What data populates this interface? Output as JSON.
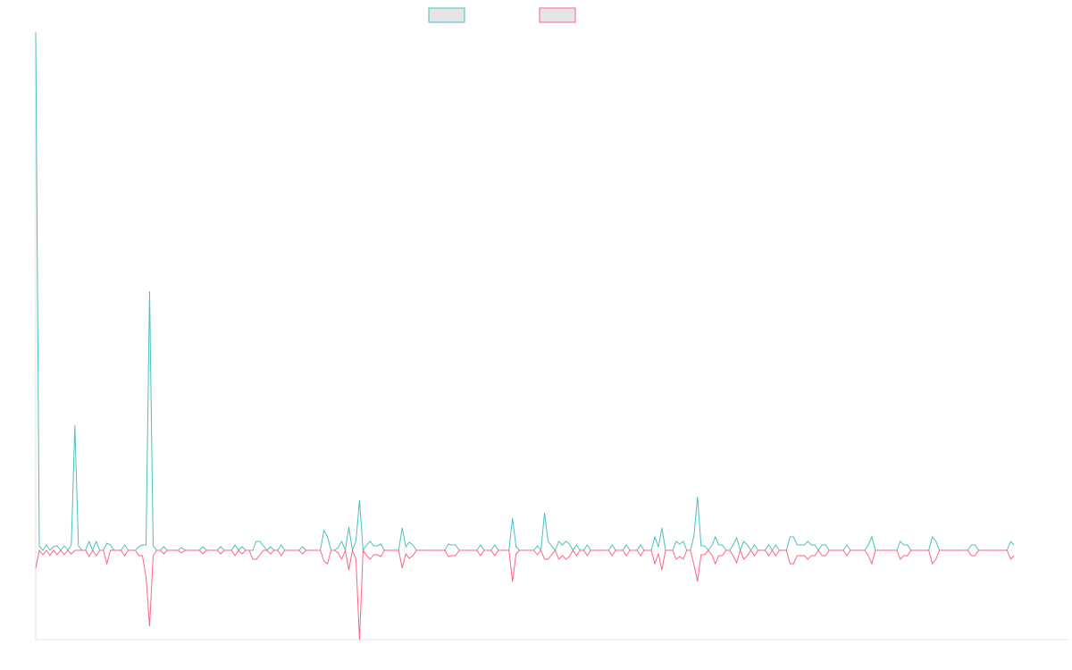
{
  "chart_data": {
    "type": "line",
    "title": "",
    "xlabel": "",
    "ylabel": "",
    "legend_position": "top-center",
    "grid": false,
    "x_range": [
      0,
      290
    ],
    "y_range": [
      -10,
      58
    ],
    "series": [
      {
        "name": "",
        "color": "#4bc0c0",
        "fill": "#e5e5e5",
        "values": [
          58,
          0.5,
          0,
          0.6,
          0,
          0.4,
          0.5,
          0,
          0.5,
          0,
          0.6,
          14,
          0.5,
          0,
          0,
          1,
          0,
          1,
          0,
          0,
          0.8,
          0.6,
          0,
          0,
          0,
          0.6,
          0,
          0,
          0,
          0.4,
          0.6,
          0.6,
          29,
          0.5,
          0,
          0,
          0.4,
          0,
          0,
          0,
          0,
          0.3,
          0,
          0,
          0,
          0,
          0,
          0.4,
          0,
          0,
          0,
          0,
          0.4,
          0,
          0,
          0,
          0.6,
          0,
          0.4,
          0,
          0,
          0,
          1,
          1,
          0.5,
          0,
          0.4,
          0,
          0,
          0.6,
          0,
          0,
          0,
          0,
          0,
          0.4,
          0,
          0,
          0,
          0,
          0,
          2.2,
          1.5,
          0,
          0,
          0.3,
          1,
          0,
          2.6,
          0,
          1,
          5.6,
          0,
          0.6,
          1,
          0.5,
          0.5,
          0.7,
          0,
          0,
          0,
          0,
          0,
          2.5,
          0.4,
          0.9,
          0.6,
          0,
          0,
          0,
          0,
          0,
          0,
          0,
          0,
          0,
          0.7,
          0.6,
          0.6,
          0,
          0,
          0,
          0,
          0,
          0,
          0.6,
          0,
          0,
          0,
          0.6,
          0,
          0,
          0,
          0,
          3.6,
          0.4,
          0,
          0,
          0,
          0,
          0,
          0.5,
          0,
          4.2,
          1,
          0.5,
          0,
          1,
          0.6,
          1,
          0.7,
          0,
          0.6,
          0,
          0,
          0.6,
          0,
          0,
          0,
          0,
          0,
          0,
          0.6,
          0,
          0,
          0,
          0.6,
          0,
          0,
          0,
          0.6,
          0,
          0,
          0,
          1.5,
          0.4,
          2.5,
          0,
          0,
          0,
          1,
          0.7,
          1,
          0,
          0,
          1.6,
          6,
          0.5,
          0.5,
          0,
          0.5,
          1.5,
          0.6,
          0.6,
          0,
          0,
          0.6,
          1.4,
          0,
          1,
          0.6,
          0,
          0.6,
          0,
          0,
          0,
          0.6,
          0,
          0.6,
          0,
          0,
          0,
          1.5,
          1.5,
          0.6,
          0.6,
          0.6,
          1,
          0.6,
          0.6,
          0,
          0.6,
          0.6,
          0,
          0,
          0,
          0,
          0,
          0.6,
          0,
          0,
          0,
          0,
          0,
          0.6,
          1.5,
          0,
          0,
          0,
          0,
          0,
          0,
          0,
          1,
          0.6,
          0.6,
          0,
          0,
          0,
          0,
          0,
          0,
          1.5,
          1,
          0,
          0,
          0,
          0,
          0,
          0,
          0,
          0,
          0,
          0.6,
          0.6,
          0,
          0,
          0,
          0,
          0,
          0,
          0,
          0,
          0,
          1,
          0.6
        ]
      },
      {
        "name": "",
        "color": "#ff6384",
        "fill": "#e5e5e5",
        "values": [
          -2,
          0,
          -0.5,
          0,
          -0.6,
          0,
          -0.5,
          0,
          -0.5,
          0,
          -0.4,
          0,
          0,
          0,
          0,
          -0.7,
          0,
          -0.6,
          0,
          0,
          -1.5,
          0,
          0,
          0,
          0,
          -0.6,
          0,
          0,
          0,
          -0.6,
          -0.6,
          -3,
          -8.5,
          -0.6,
          0,
          0,
          -0.4,
          0,
          0,
          0,
          0,
          -0.3,
          0,
          0,
          0,
          0,
          0,
          -0.4,
          0,
          0,
          0,
          0,
          -0.4,
          0,
          0,
          0,
          -0.6,
          0,
          -0.4,
          0,
          0,
          -1,
          -1,
          -0.5,
          0,
          0,
          -0.4,
          0,
          0,
          -0.6,
          0,
          0,
          0,
          0,
          0,
          -0.4,
          0,
          0,
          0,
          0,
          0,
          -1.2,
          -1.5,
          0,
          0,
          -0.3,
          -1,
          0,
          -2.2,
          0,
          -1,
          -10,
          0,
          -0.6,
          -1,
          -0.5,
          -0.5,
          -0.7,
          0,
          0,
          0,
          0,
          0,
          -2,
          -0.4,
          -0.9,
          -0.6,
          0,
          0,
          0,
          0,
          0,
          0,
          0,
          0,
          0,
          -0.7,
          -0.6,
          -0.6,
          0,
          0,
          0,
          0,
          0,
          0,
          -0.6,
          0,
          0,
          0,
          -0.6,
          0,
          0,
          0,
          0,
          -3.5,
          -0.4,
          0,
          0,
          0,
          0,
          0,
          -0.5,
          0,
          -1,
          -1,
          -0.5,
          0,
          -1,
          -0.6,
          -1,
          -0.7,
          0,
          -0.6,
          0,
          0,
          -0.6,
          0,
          0,
          0,
          0,
          0,
          0,
          -0.6,
          0,
          0,
          0,
          -0.6,
          0,
          0,
          0,
          -0.6,
          0,
          0,
          0,
          -1.5,
          -0.4,
          -2.2,
          0,
          0,
          0,
          -1,
          -0.7,
          -1,
          0,
          0,
          -1.6,
          -3.5,
          -0.5,
          -0.5,
          0,
          -0.5,
          -1.5,
          -0.6,
          -0.6,
          0,
          0,
          -0.6,
          -1.4,
          0,
          -1,
          -0.6,
          0,
          -0.6,
          0,
          0,
          0,
          -0.6,
          0,
          -0.6,
          0,
          0,
          0,
          -1.5,
          -1.5,
          -0.6,
          -0.6,
          -0.6,
          -1,
          -0.6,
          -0.6,
          0,
          -0.6,
          -0.6,
          0,
          0,
          0,
          0,
          0,
          -0.6,
          0,
          0,
          0,
          0,
          0,
          -0.6,
          -1.5,
          0,
          0,
          0,
          0,
          0,
          0,
          0,
          -1,
          -0.6,
          -0.6,
          0,
          0,
          0,
          0,
          0,
          0,
          -1.5,
          -1,
          0,
          0,
          0,
          0,
          0,
          0,
          0,
          0,
          0,
          -0.6,
          -0.6,
          0,
          0,
          0,
          0,
          0,
          0,
          0,
          0,
          0,
          -1,
          -0.6
        ]
      }
    ]
  }
}
